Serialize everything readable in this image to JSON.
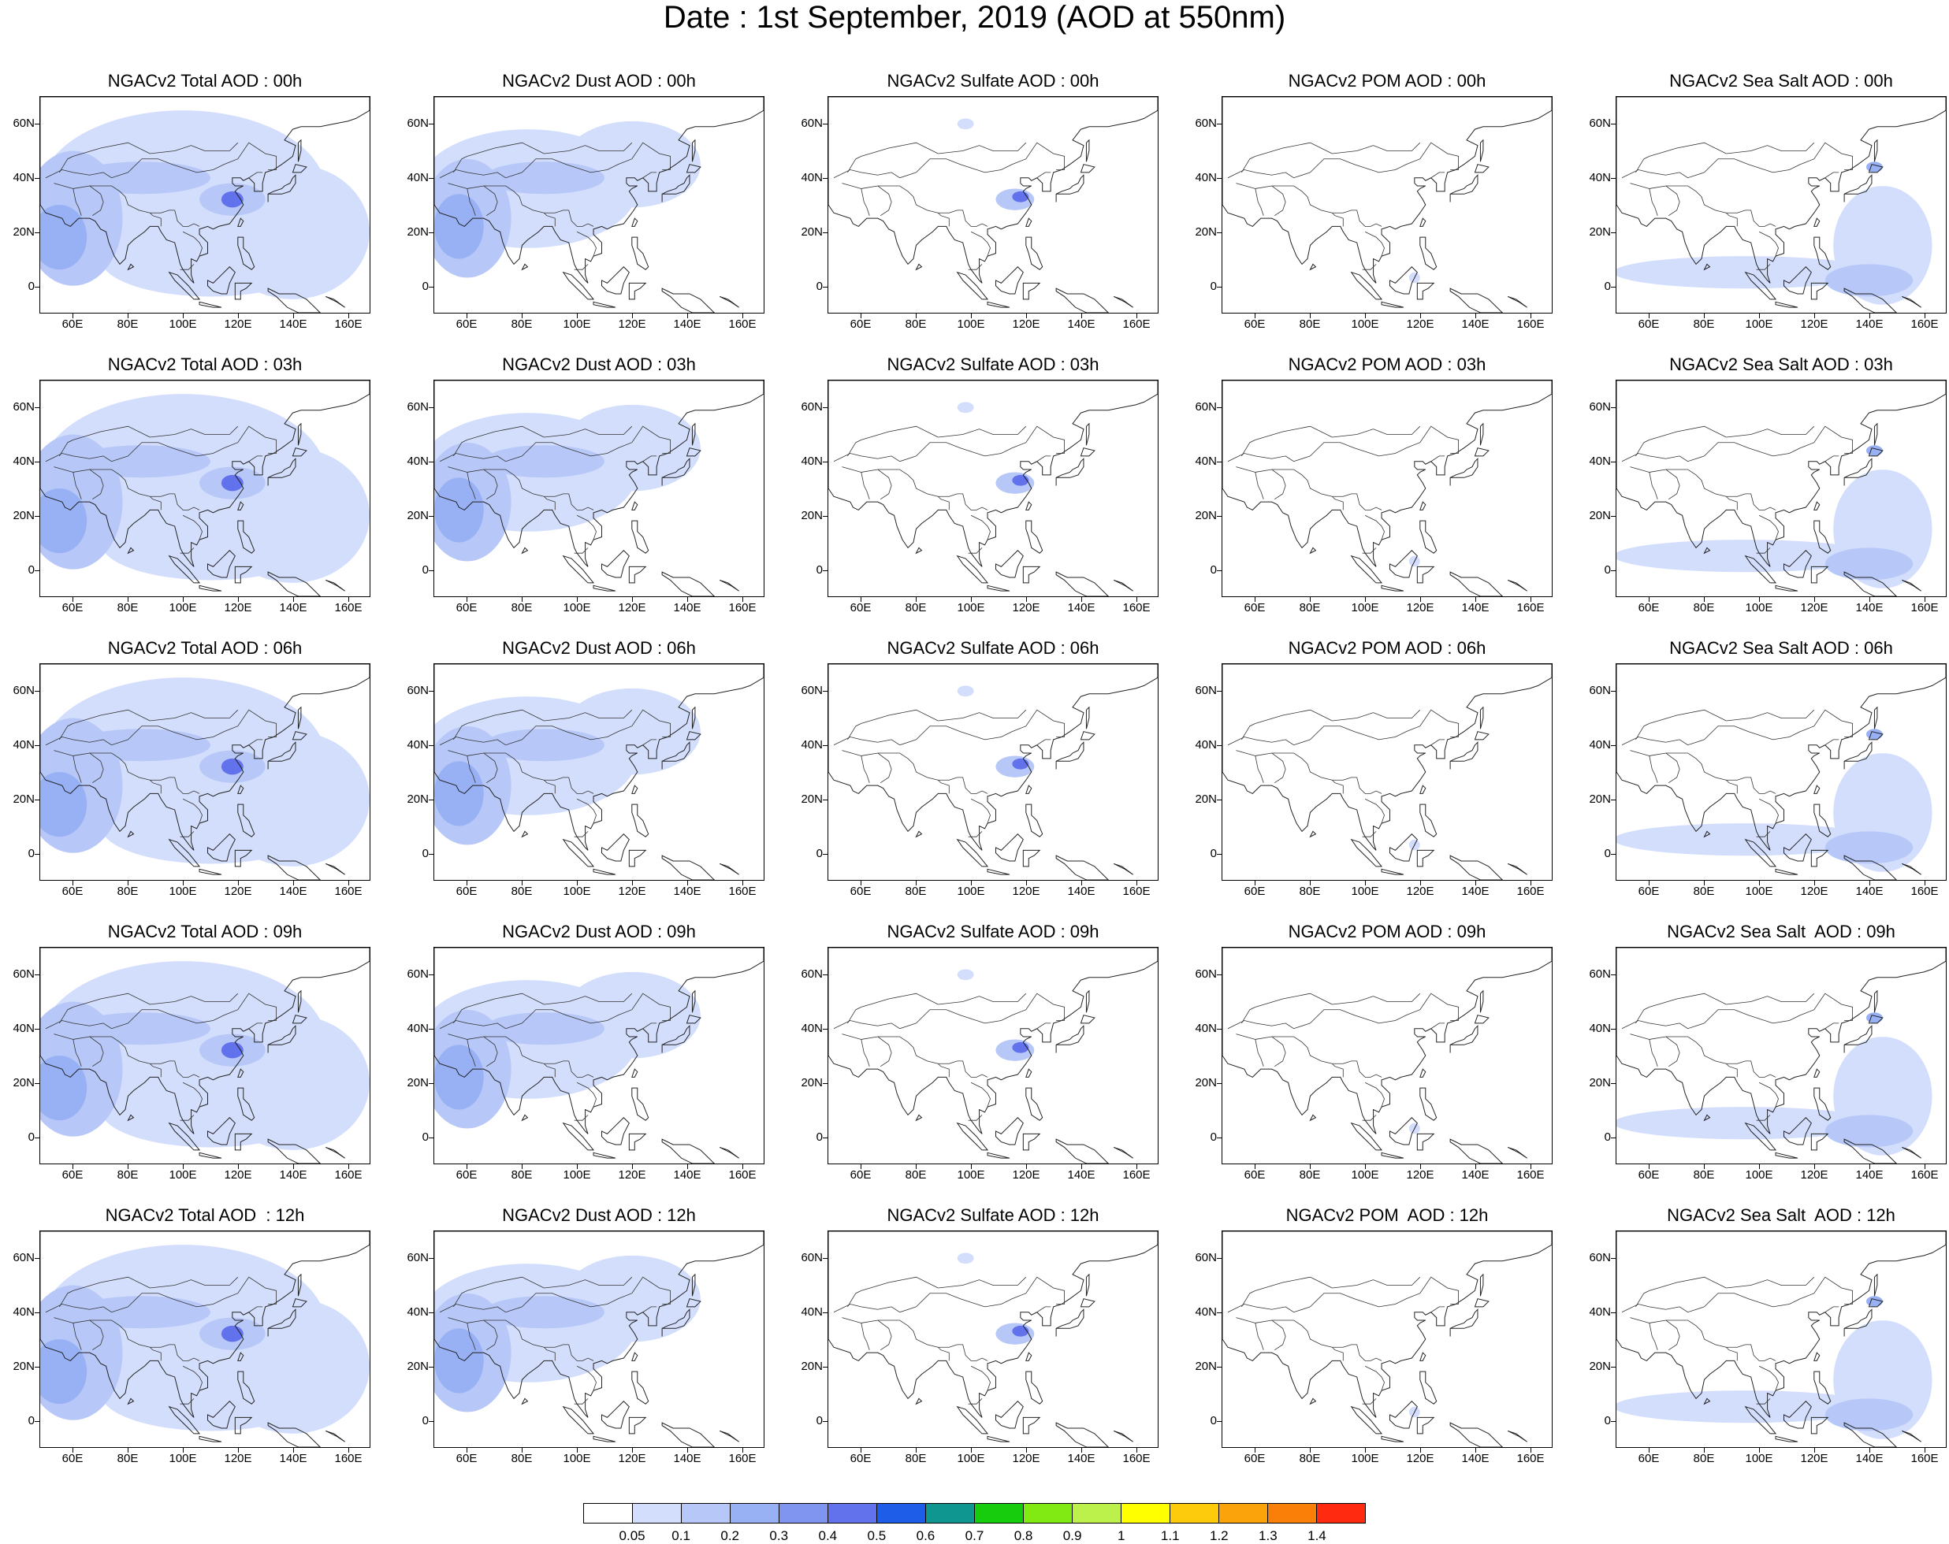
{
  "title": "Date : 1st September, 2019 (AOD at 550nm)",
  "lat_labels": [
    "60N",
    "40N",
    "20N",
    "0"
  ],
  "lon_labels": [
    "60E",
    "80E",
    "100E",
    "120E",
    "140E",
    "160E"
  ],
  "map_extent": {
    "lon": [
      48,
      168
    ],
    "lat": [
      -10,
      70
    ]
  },
  "panel_titles": [
    [
      "NGACv2 Total AOD : 00h",
      "NGACv2 Dust AOD : 00h",
      "NGACv2 Sulfate AOD : 00h",
      "NGACv2 POM AOD : 00h",
      "NGACv2 Sea Salt AOD : 00h"
    ],
    [
      "NGACv2 Total AOD : 03h",
      "NGACv2 Dust AOD : 03h",
      "NGACv2 Sulfate AOD : 03h",
      "NGACv2 POM AOD : 03h",
      "NGACv2 Sea Salt AOD : 03h"
    ],
    [
      "NGACv2 Total AOD : 06h",
      "NGACv2 Dust AOD : 06h",
      "NGACv2 Sulfate AOD : 06h",
      "NGACv2 POM AOD : 06h",
      "NGACv2 Sea Salt AOD : 06h"
    ],
    [
      "NGACv2 Total AOD : 09h",
      "NGACv2 Dust AOD : 09h",
      "NGACv2 Sulfate AOD : 09h",
      "NGACv2 POM AOD : 09h",
      "NGACv2 Sea Salt  AOD : 09h"
    ],
    [
      "NGACv2 Total AOD  : 12h",
      "NGACv2 Dust AOD : 12h",
      "NGACv2 Sulfate AOD : 12h",
      "NGACv2 POM  AOD : 12h",
      "NGACv2 Sea Salt  AOD : 12h"
    ]
  ],
  "colorbar": {
    "labels": [
      "0.05",
      "0.1",
      "0.2",
      "0.3",
      "0.4",
      "0.5",
      "0.6",
      "0.7",
      "0.8",
      "0.9",
      "1",
      "1.1",
      "1.2",
      "1.3",
      "1.4"
    ],
    "colors": [
      "#ffffff",
      "#d3defc",
      "#b6c7f8",
      "#98b0f4",
      "#7f95ef",
      "#6271ec",
      "#1d5de8",
      "#0f9690",
      "#16cc0d",
      "#80ea12",
      "#bcf04a",
      "#ffff00",
      "#fdca0c",
      "#fba30a",
      "#fa7f08",
      "#ff2a10"
    ]
  },
  "colors": {
    "low": "#d3defc",
    "mid": "#b6c7f8",
    "high": "#98b0f4",
    "peak": "#6271ec"
  }
}
